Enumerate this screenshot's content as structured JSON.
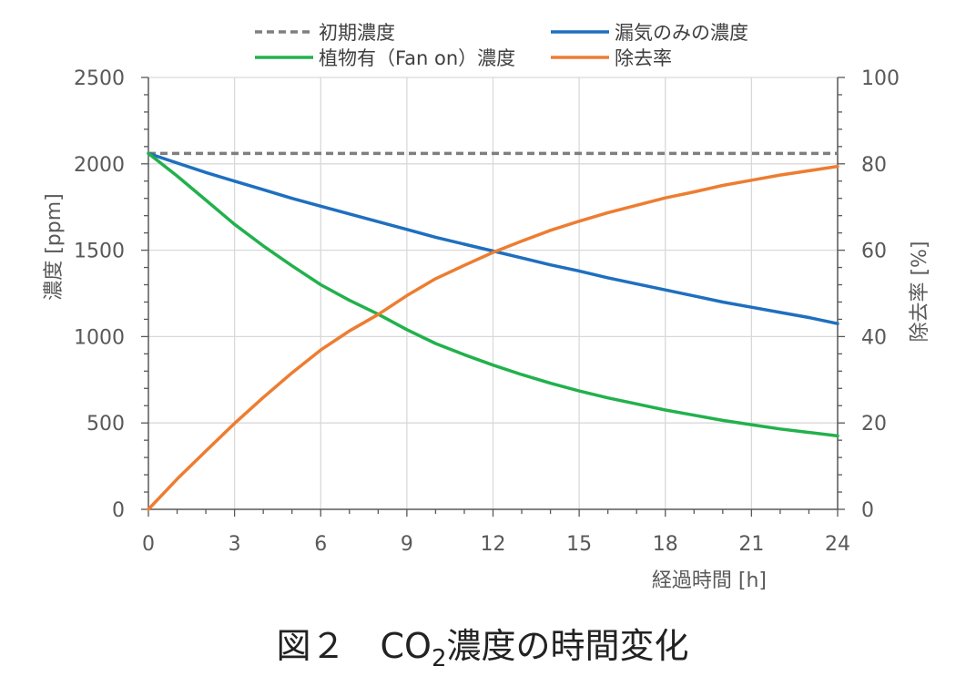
{
  "chart_data": {
    "type": "line",
    "xlabel": "経過時間 [h]",
    "ylabel_left": "濃度 [ppm]",
    "ylabel_right": "除去率 [%]",
    "xlim": [
      0,
      24
    ],
    "ylim_left": [
      0,
      2500
    ],
    "ylim_right": [
      0,
      100
    ],
    "x_ticks": [
      0,
      3,
      6,
      9,
      12,
      15,
      18,
      21,
      24
    ],
    "y_ticks_left": [
      0,
      500,
      1000,
      1500,
      2000,
      2500
    ],
    "y_ticks_right": [
      0,
      20,
      40,
      60,
      80,
      100
    ],
    "grid": true,
    "legend_position": "top",
    "x": [
      0,
      1,
      2,
      3,
      4,
      5,
      6,
      7,
      8,
      9,
      10,
      11,
      12,
      13,
      14,
      15,
      16,
      17,
      18,
      19,
      20,
      21,
      22,
      23,
      24
    ],
    "series": [
      {
        "name": "初期濃度",
        "axis": "left",
        "color": "#7f7f7f",
        "dash": "dashed",
        "values": [
          2060,
          2060,
          2060,
          2060,
          2060,
          2060,
          2060,
          2060,
          2060,
          2060,
          2060,
          2060,
          2060,
          2060,
          2060,
          2060,
          2060,
          2060,
          2060,
          2060,
          2060,
          2060,
          2060,
          2060,
          2060
        ]
      },
      {
        "name": "漏気のみの濃度",
        "axis": "left",
        "color": "#1f6fbf",
        "dash": "solid",
        "values": [
          2060,
          2005,
          1950,
          1900,
          1850,
          1800,
          1755,
          1710,
          1665,
          1620,
          1575,
          1535,
          1495,
          1455,
          1415,
          1380,
          1340,
          1305,
          1270,
          1235,
          1200,
          1170,
          1140,
          1110,
          1075
        ]
      },
      {
        "name": "植物有（Fan on）濃度",
        "axis": "left",
        "color": "#22b14c",
        "dash": "solid",
        "values": [
          2060,
          1930,
          1790,
          1650,
          1525,
          1410,
          1300,
          1210,
          1130,
          1040,
          960,
          895,
          835,
          780,
          730,
          685,
          645,
          610,
          575,
          545,
          515,
          490,
          465,
          445,
          425
        ]
      },
      {
        "name": "除去率",
        "axis": "right",
        "color": "#ed7d31",
        "dash": "solid",
        "values": [
          0,
          7,
          13.5,
          19.9,
          25.9,
          31.6,
          36.9,
          41.3,
          45.1,
          49.5,
          53.4,
          56.5,
          59.5,
          62.1,
          64.6,
          66.7,
          68.7,
          70.4,
          72.1,
          73.5,
          75,
          76.2,
          77.4,
          78.4,
          79.4
        ]
      }
    ]
  },
  "caption": {
    "prefix": "図２　CO",
    "subscript": "2",
    "suffix": "濃度の時間変化"
  }
}
